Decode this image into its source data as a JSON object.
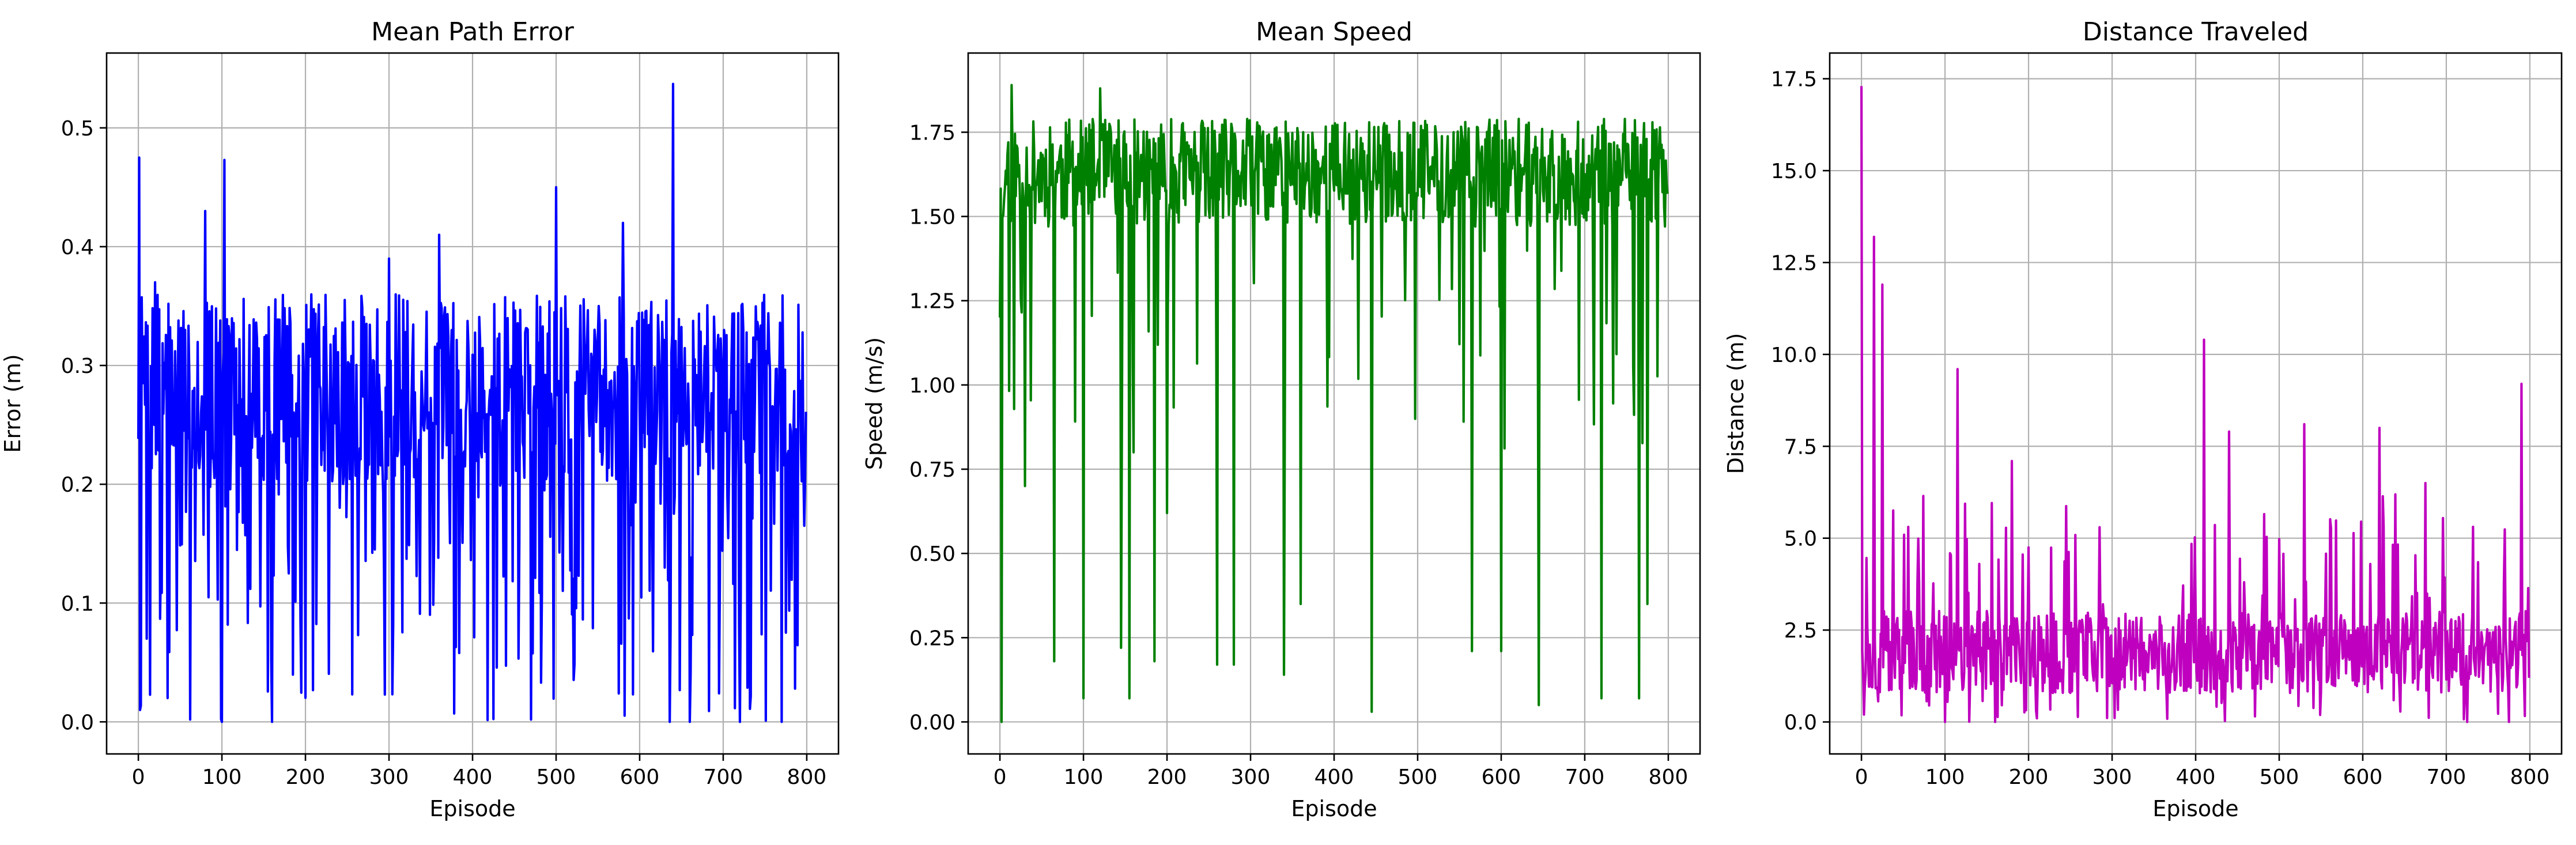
{
  "chart_data": [
    {
      "type": "line",
      "title": "Mean Path Error",
      "xlabel": "Episode",
      "ylabel": "Error (m)",
      "xlim": [
        -38,
        838
      ],
      "ylim": [
        -0.027,
        0.563
      ],
      "xticks": [
        0,
        100,
        200,
        300,
        400,
        500,
        600,
        700,
        800
      ],
      "yticks": [
        0.0,
        0.1,
        0.2,
        0.3,
        0.4,
        0.5
      ],
      "ytick_labels": [
        "0.0",
        "0.1",
        "0.2",
        "0.3",
        "0.4",
        "0.5"
      ],
      "grid": true,
      "color": "#0000ff",
      "base": 0.28,
      "noise": 0.05,
      "min": 0.0,
      "max": 0.37,
      "dips": 0.18,
      "dip_min": 0.0,
      "dip_max": 0.2,
      "seed": 7,
      "peaks": [
        [
          1,
          0.475
        ],
        [
          2,
          0.01
        ],
        [
          10,
          0.07
        ],
        [
          20,
          0.37
        ],
        [
          35,
          0.02
        ],
        [
          80,
          0.43
        ],
        [
          100,
          0.0
        ],
        [
          103,
          0.473
        ],
        [
          160,
          0.0
        ],
        [
          300,
          0.39
        ],
        [
          360,
          0.41
        ],
        [
          500,
          0.45
        ],
        [
          580,
          0.42
        ],
        [
          636,
          0.0
        ],
        [
          640,
          0.537
        ],
        [
          660,
          0.0
        ],
        [
          720,
          0.0
        ],
        [
          770,
          0.0
        ]
      ]
    },
    {
      "type": "line",
      "title": "Mean Speed",
      "xlabel": "Episode",
      "ylabel": "Speed (m/s)",
      "xlim": [
        -38,
        838
      ],
      "ylim": [
        -0.095,
        1.985
      ],
      "xticks": [
        0,
        100,
        200,
        300,
        400,
        500,
        600,
        700,
        800
      ],
      "yticks": [
        0.0,
        0.25,
        0.5,
        0.75,
        1.0,
        1.25,
        1.5,
        1.75
      ],
      "ytick_labels": [
        "0.00",
        "0.25",
        "0.50",
        "0.75",
        "1.00",
        "1.25",
        "1.50",
        "1.75"
      ],
      "grid": true,
      "color": "#008000",
      "base": 1.63,
      "noise": 0.1,
      "min": 1.35,
      "max": 1.85,
      "dips": 0.05,
      "dip_min": 0.8,
      "dip_max": 1.4,
      "seed": 11,
      "peaks": [
        [
          0,
          1.2
        ],
        [
          2,
          0.0
        ],
        [
          5,
          1.55
        ],
        [
          10,
          1.72
        ],
        [
          14,
          1.89
        ],
        [
          30,
          0.7
        ],
        [
          65,
          0.18
        ],
        [
          100,
          0.07
        ],
        [
          120,
          1.88
        ],
        [
          145,
          0.22
        ],
        [
          155,
          0.07
        ],
        [
          160,
          0.8
        ],
        [
          185,
          0.18
        ],
        [
          200,
          0.62
        ],
        [
          260,
          0.17
        ],
        [
          280,
          0.17
        ],
        [
          340,
          0.14
        ],
        [
          360,
          0.35
        ],
        [
          445,
          0.03
        ],
        [
          565,
          0.21
        ],
        [
          600,
          0.21
        ],
        [
          645,
          0.05
        ],
        [
          720,
          0.07
        ],
        [
          765,
          0.07
        ],
        [
          775,
          0.35
        ]
      ]
    },
    {
      "type": "line",
      "title": "Distance Traveled",
      "xlabel": "Episode",
      "ylabel": "Distance (m)",
      "xlim": [
        -38,
        838
      ],
      "ylim": [
        -0.87,
        18.2
      ],
      "xticks": [
        0,
        100,
        200,
        300,
        400,
        500,
        600,
        700,
        800
      ],
      "yticks": [
        0.0,
        2.5,
        5.0,
        7.5,
        10.0,
        12.5,
        15.0,
        17.5
      ],
      "ytick_labels": [
        "0.0",
        "2.5",
        "5.0",
        "7.5",
        "10.0",
        "12.5",
        "15.0",
        "17.5"
      ],
      "grid": true,
      "color": "#bf00bf",
      "base": 1.9,
      "noise": 0.7,
      "min": 0.5,
      "max": 3.4,
      "dips": 0.04,
      "dip_min": 0.0,
      "dip_max": 0.6,
      "spikes": 0.08,
      "spike_min": 3.2,
      "spike_max": 6.2,
      "seed": 23,
      "peaks": [
        [
          0,
          17.3
        ],
        [
          3,
          0.2
        ],
        [
          15,
          13.2
        ],
        [
          25,
          11.9
        ],
        [
          40,
          1.2
        ],
        [
          100,
          0.0
        ],
        [
          115,
          9.6
        ],
        [
          160,
          0.0
        ],
        [
          180,
          7.1
        ],
        [
          410,
          10.4
        ],
        [
          440,
          7.9
        ],
        [
          530,
          8.1
        ],
        [
          620,
          8.0
        ],
        [
          675,
          6.5
        ],
        [
          725,
          0.0
        ],
        [
          775,
          0.0
        ],
        [
          790,
          9.2
        ]
      ]
    }
  ]
}
